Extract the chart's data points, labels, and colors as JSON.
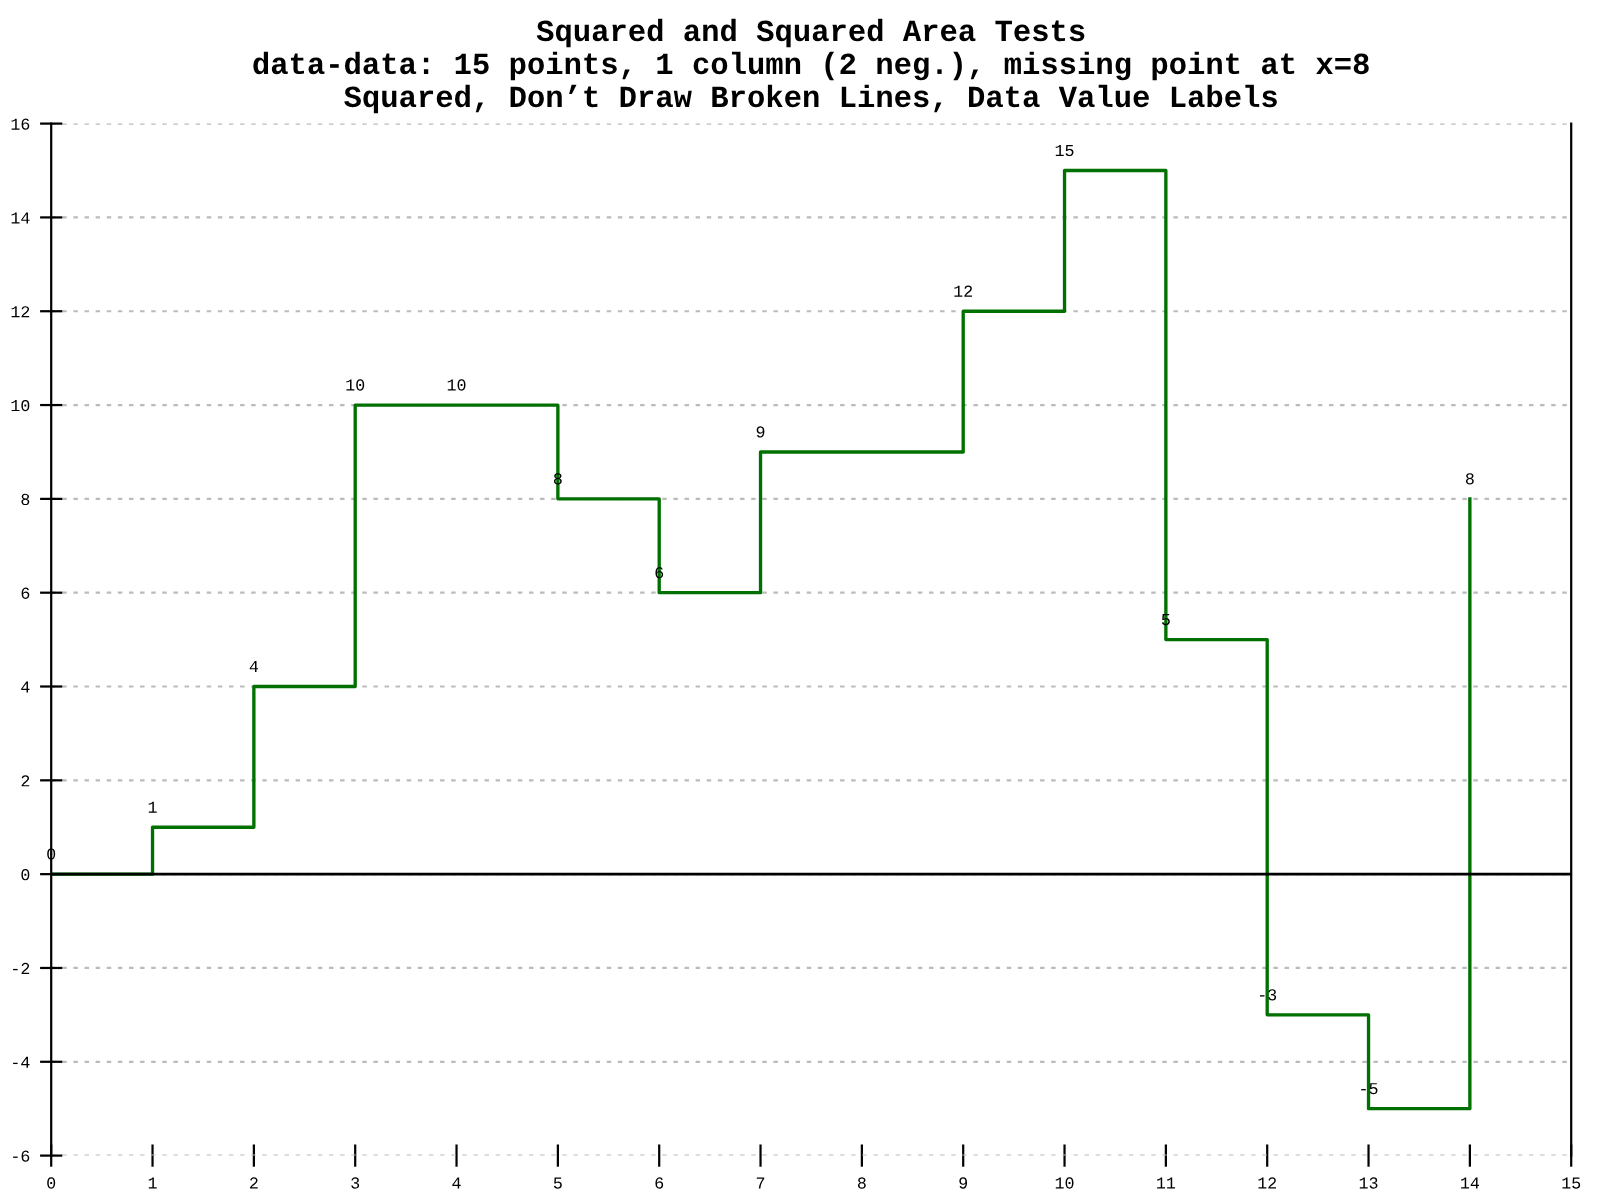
{
  "chart_data": {
    "type": "step",
    "title": "Squared and Squared Area Tests\ndata-data: 15 points, 1 column (2 neg.), missing point at x=8\nSquared, Don’t Draw Broken Lines, Data Value Labels",
    "x": [
      0,
      1,
      2,
      3,
      4,
      5,
      6,
      7,
      8,
      9,
      10,
      11,
      12,
      13,
      14
    ],
    "series": [
      {
        "color": "#007000",
        "values": [
          0,
          1,
          4,
          10,
          10,
          8,
          6,
          9,
          null,
          12,
          15,
          5,
          -3,
          -5,
          8
        ]
      }
    ],
    "data_labels": true,
    "xlim": [
      0,
      15
    ],
    "xticks": [
      0,
      1,
      2,
      3,
      4,
      5,
      6,
      7,
      8,
      9,
      10,
      11,
      12,
      13,
      14,
      15
    ],
    "ylim": [
      -6,
      16
    ],
    "yticks": [
      -6,
      -4,
      -2,
      0,
      2,
      4,
      6,
      8,
      10,
      12,
      14,
      16
    ],
    "grid": "y",
    "ref_lines": [
      {
        "axis": "y",
        "value": 0,
        "color": "#000000"
      }
    ]
  }
}
